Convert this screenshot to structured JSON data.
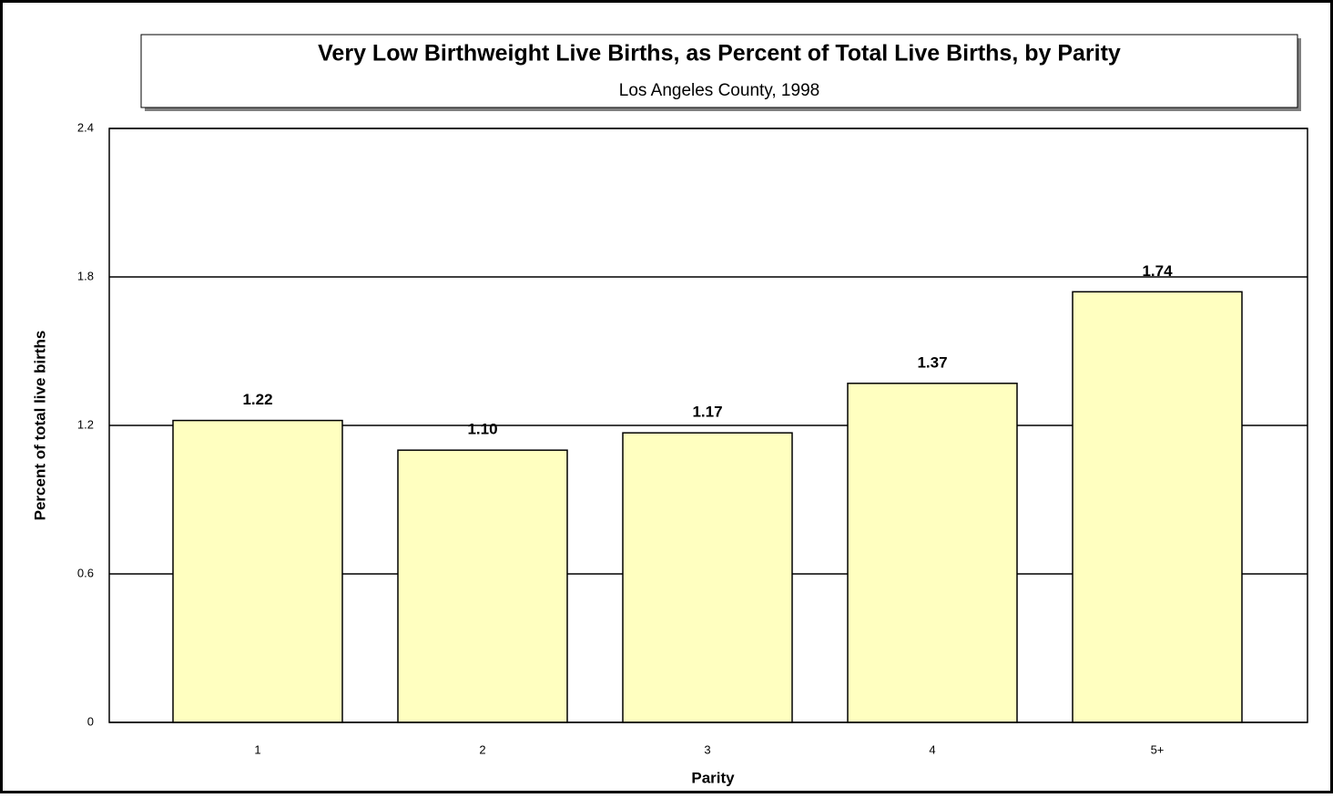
{
  "chart_data": {
    "type": "bar",
    "title": "Very Low Birthweight Live Births, as Percent of Total Live Births, by Parity",
    "subtitle": "Los Angeles County, 1998",
    "x_label": "Parity",
    "y_label": "Percent of total live births",
    "categories": [
      "1",
      "2",
      "3",
      "4",
      "5+"
    ],
    "values": [
      1.22,
      1.1,
      1.17,
      1.37,
      1.74
    ],
    "value_labels": [
      "1.22",
      "1.10",
      "1.17",
      "1.37",
      "1.74"
    ],
    "color": "#ffffc0",
    "ylim": [
      0,
      2.4
    ],
    "yticks": [
      0,
      0.6,
      1.2,
      1.8,
      2.4
    ],
    "grid": true
  }
}
